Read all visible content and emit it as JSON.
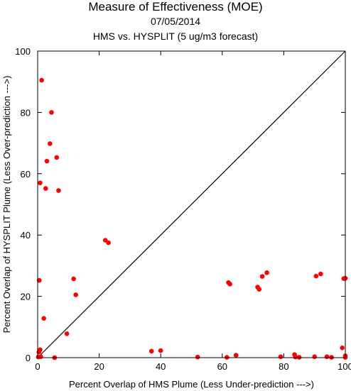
{
  "chart_data": {
    "type": "scatter",
    "title": "Measure of Effectiveness (MOE)",
    "subtitle_date": "07/05/2014",
    "subtitle": "HMS vs. HYSPLIT  (5 ug/m3 forecast)",
    "xlabel": "Percent Overlap of HMS Plume (Less Under-prediction --->)",
    "ylabel": "Percent Overlap of HYSPLIT Plume (Less Over-prediction --->)",
    "xlim": [
      0,
      100
    ],
    "ylim": [
      0,
      100
    ],
    "xticks": [
      0,
      20,
      40,
      60,
      80,
      100
    ],
    "yticks": [
      0,
      20,
      40,
      60,
      80,
      100
    ],
    "reference_line": "y = x",
    "grid": false,
    "marker_color": "#ff0000",
    "line_color": "#000000",
    "points": [
      {
        "x": 1.3,
        "y": 90.5
      },
      {
        "x": 4.5,
        "y": 80.0
      },
      {
        "x": 4.0,
        "y": 69.8
      },
      {
        "x": 6.2,
        "y": 65.3
      },
      {
        "x": 3.0,
        "y": 64.1
      },
      {
        "x": 0.8,
        "y": 57.0
      },
      {
        "x": 2.6,
        "y": 55.2
      },
      {
        "x": 6.8,
        "y": 54.5
      },
      {
        "x": 22.0,
        "y": 38.3
      },
      {
        "x": 23.0,
        "y": 37.5
      },
      {
        "x": 0.5,
        "y": 25.2
      },
      {
        "x": 11.7,
        "y": 25.7
      },
      {
        "x": 12.4,
        "y": 20.5
      },
      {
        "x": 2.0,
        "y": 12.8
      },
      {
        "x": 9.5,
        "y": 7.8
      },
      {
        "x": 0.8,
        "y": 2.6
      },
      {
        "x": 0.4,
        "y": 1.8
      },
      {
        "x": 0.2,
        "y": 0.2
      },
      {
        "x": 1.0,
        "y": 0.3
      },
      {
        "x": 5.5,
        "y": 0.0
      },
      {
        "x": 37.0,
        "y": 2.1
      },
      {
        "x": 40.0,
        "y": 2.3
      },
      {
        "x": 52.0,
        "y": 0.2
      },
      {
        "x": 61.5,
        "y": 0.1
      },
      {
        "x": 64.5,
        "y": 0.8
      },
      {
        "x": 62.0,
        "y": 24.5
      },
      {
        "x": 62.5,
        "y": 24.0
      },
      {
        "x": 71.5,
        "y": 23.0
      },
      {
        "x": 72.0,
        "y": 22.3
      },
      {
        "x": 73.0,
        "y": 26.5
      },
      {
        "x": 74.5,
        "y": 27.7
      },
      {
        "x": 79.0,
        "y": 0.3
      },
      {
        "x": 83.5,
        "y": 1.0
      },
      {
        "x": 83.8,
        "y": 0.2
      },
      {
        "x": 85.0,
        "y": 0.1
      },
      {
        "x": 90.0,
        "y": 0.3
      },
      {
        "x": 90.5,
        "y": 26.6
      },
      {
        "x": 92.0,
        "y": 27.3
      },
      {
        "x": 94.0,
        "y": 0.3
      },
      {
        "x": 95.5,
        "y": 0.1
      },
      {
        "x": 99.0,
        "y": 3.2
      },
      {
        "x": 99.5,
        "y": 25.8
      },
      {
        "x": 100.0,
        "y": 25.9
      },
      {
        "x": 100.0,
        "y": 0.6
      },
      {
        "x": 100.0,
        "y": 0.1
      }
    ]
  }
}
